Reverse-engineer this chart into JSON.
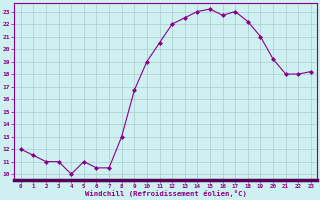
{
  "x": [
    0,
    1,
    2,
    3,
    4,
    5,
    6,
    7,
    8,
    9,
    10,
    11,
    12,
    13,
    14,
    15,
    16,
    17,
    18,
    19,
    20,
    21,
    22,
    23
  ],
  "y": [
    12.0,
    11.5,
    11.0,
    11.0,
    10.0,
    11.0,
    10.5,
    10.5,
    13.0,
    16.7,
    19.0,
    20.5,
    22.0,
    22.5,
    23.0,
    23.2,
    22.7,
    23.0,
    22.2,
    21.0,
    19.2,
    18.0,
    18.0,
    18.2
  ],
  "line_color": "#880088",
  "marker": "D",
  "marker_size": 2,
  "bg_color": "#cff0f0",
  "grid_color": "#aacccc",
  "xlabel": "Windchill (Refroidissement éolien,°C)",
  "xlabel_color": "#880088",
  "yticks": [
    10,
    11,
    12,
    13,
    14,
    15,
    16,
    17,
    18,
    19,
    20,
    21,
    22,
    23
  ],
  "xticks": [
    0,
    1,
    2,
    3,
    4,
    5,
    6,
    7,
    8,
    9,
    10,
    11,
    12,
    13,
    14,
    15,
    16,
    17,
    18,
    19,
    20,
    21,
    22,
    23
  ],
  "xlim": [
    -0.5,
    23.5
  ],
  "ylim": [
    9.5,
    23.7
  ],
  "tick_color": "#880088",
  "spine_color": "#880088",
  "spine_bottom_color": "#550055"
}
